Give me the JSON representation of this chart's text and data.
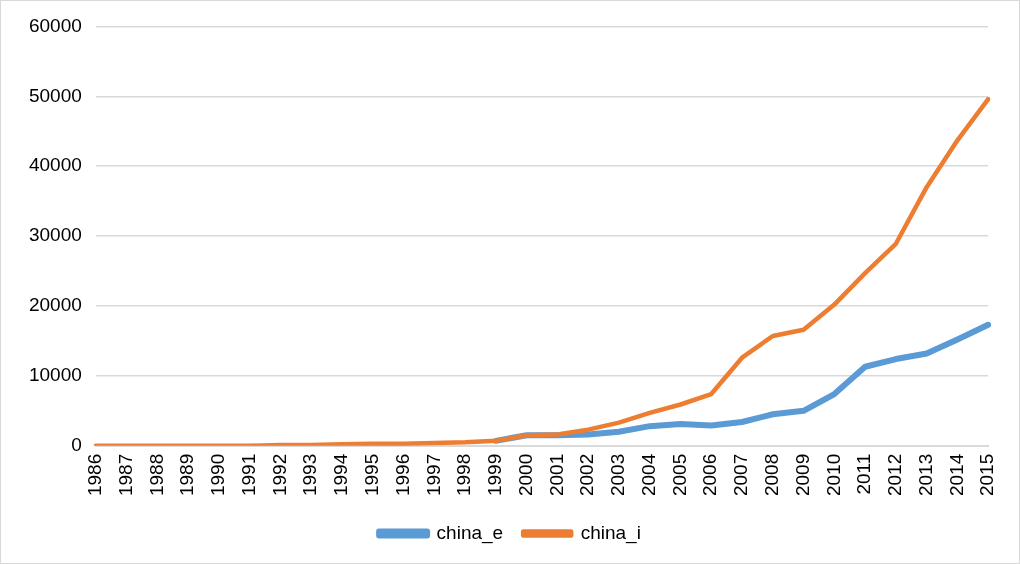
{
  "chart_data": {
    "type": "line",
    "categories": [
      "1986",
      "1987",
      "1988",
      "1989",
      "1990",
      "1991",
      "1992",
      "1993",
      "1994",
      "1995",
      "1996",
      "1997",
      "1998",
      "1999",
      "2000",
      "2001",
      "2002",
      "2003",
      "2004",
      "2005",
      "2006",
      "2007",
      "2008",
      "2009",
      "2010",
      "2011",
      "2012",
      "2013",
      "2014",
      "2015"
    ],
    "series": [
      {
        "name": "china_e",
        "color": "#5b9bd5",
        "values": [
          null,
          null,
          null,
          null,
          null,
          null,
          null,
          null,
          null,
          null,
          null,
          null,
          null,
          700,
          1500,
          1500,
          1600,
          2000,
          2800,
          3100,
          2900,
          3400,
          4500,
          5000,
          7400,
          11300,
          12400,
          13200,
          15200,
          17300
        ]
      },
      {
        "name": "china_i",
        "color": "#ed7d31",
        "values": [
          0,
          0,
          0,
          0,
          0,
          0,
          100,
          100,
          200,
          300,
          300,
          400,
          500,
          700,
          1500,
          1600,
          2300,
          3300,
          4700,
          5900,
          7400,
          12600,
          15700,
          16600,
          20200,
          24700,
          28900,
          37000,
          43700,
          49600
        ]
      }
    ],
    "ylim": [
      0,
      60000
    ],
    "yticks": [
      0,
      10000,
      20000,
      30000,
      40000,
      50000,
      60000
    ],
    "grid": "y",
    "legend": "bottom",
    "marker": "none",
    "line_style": "solid"
  }
}
